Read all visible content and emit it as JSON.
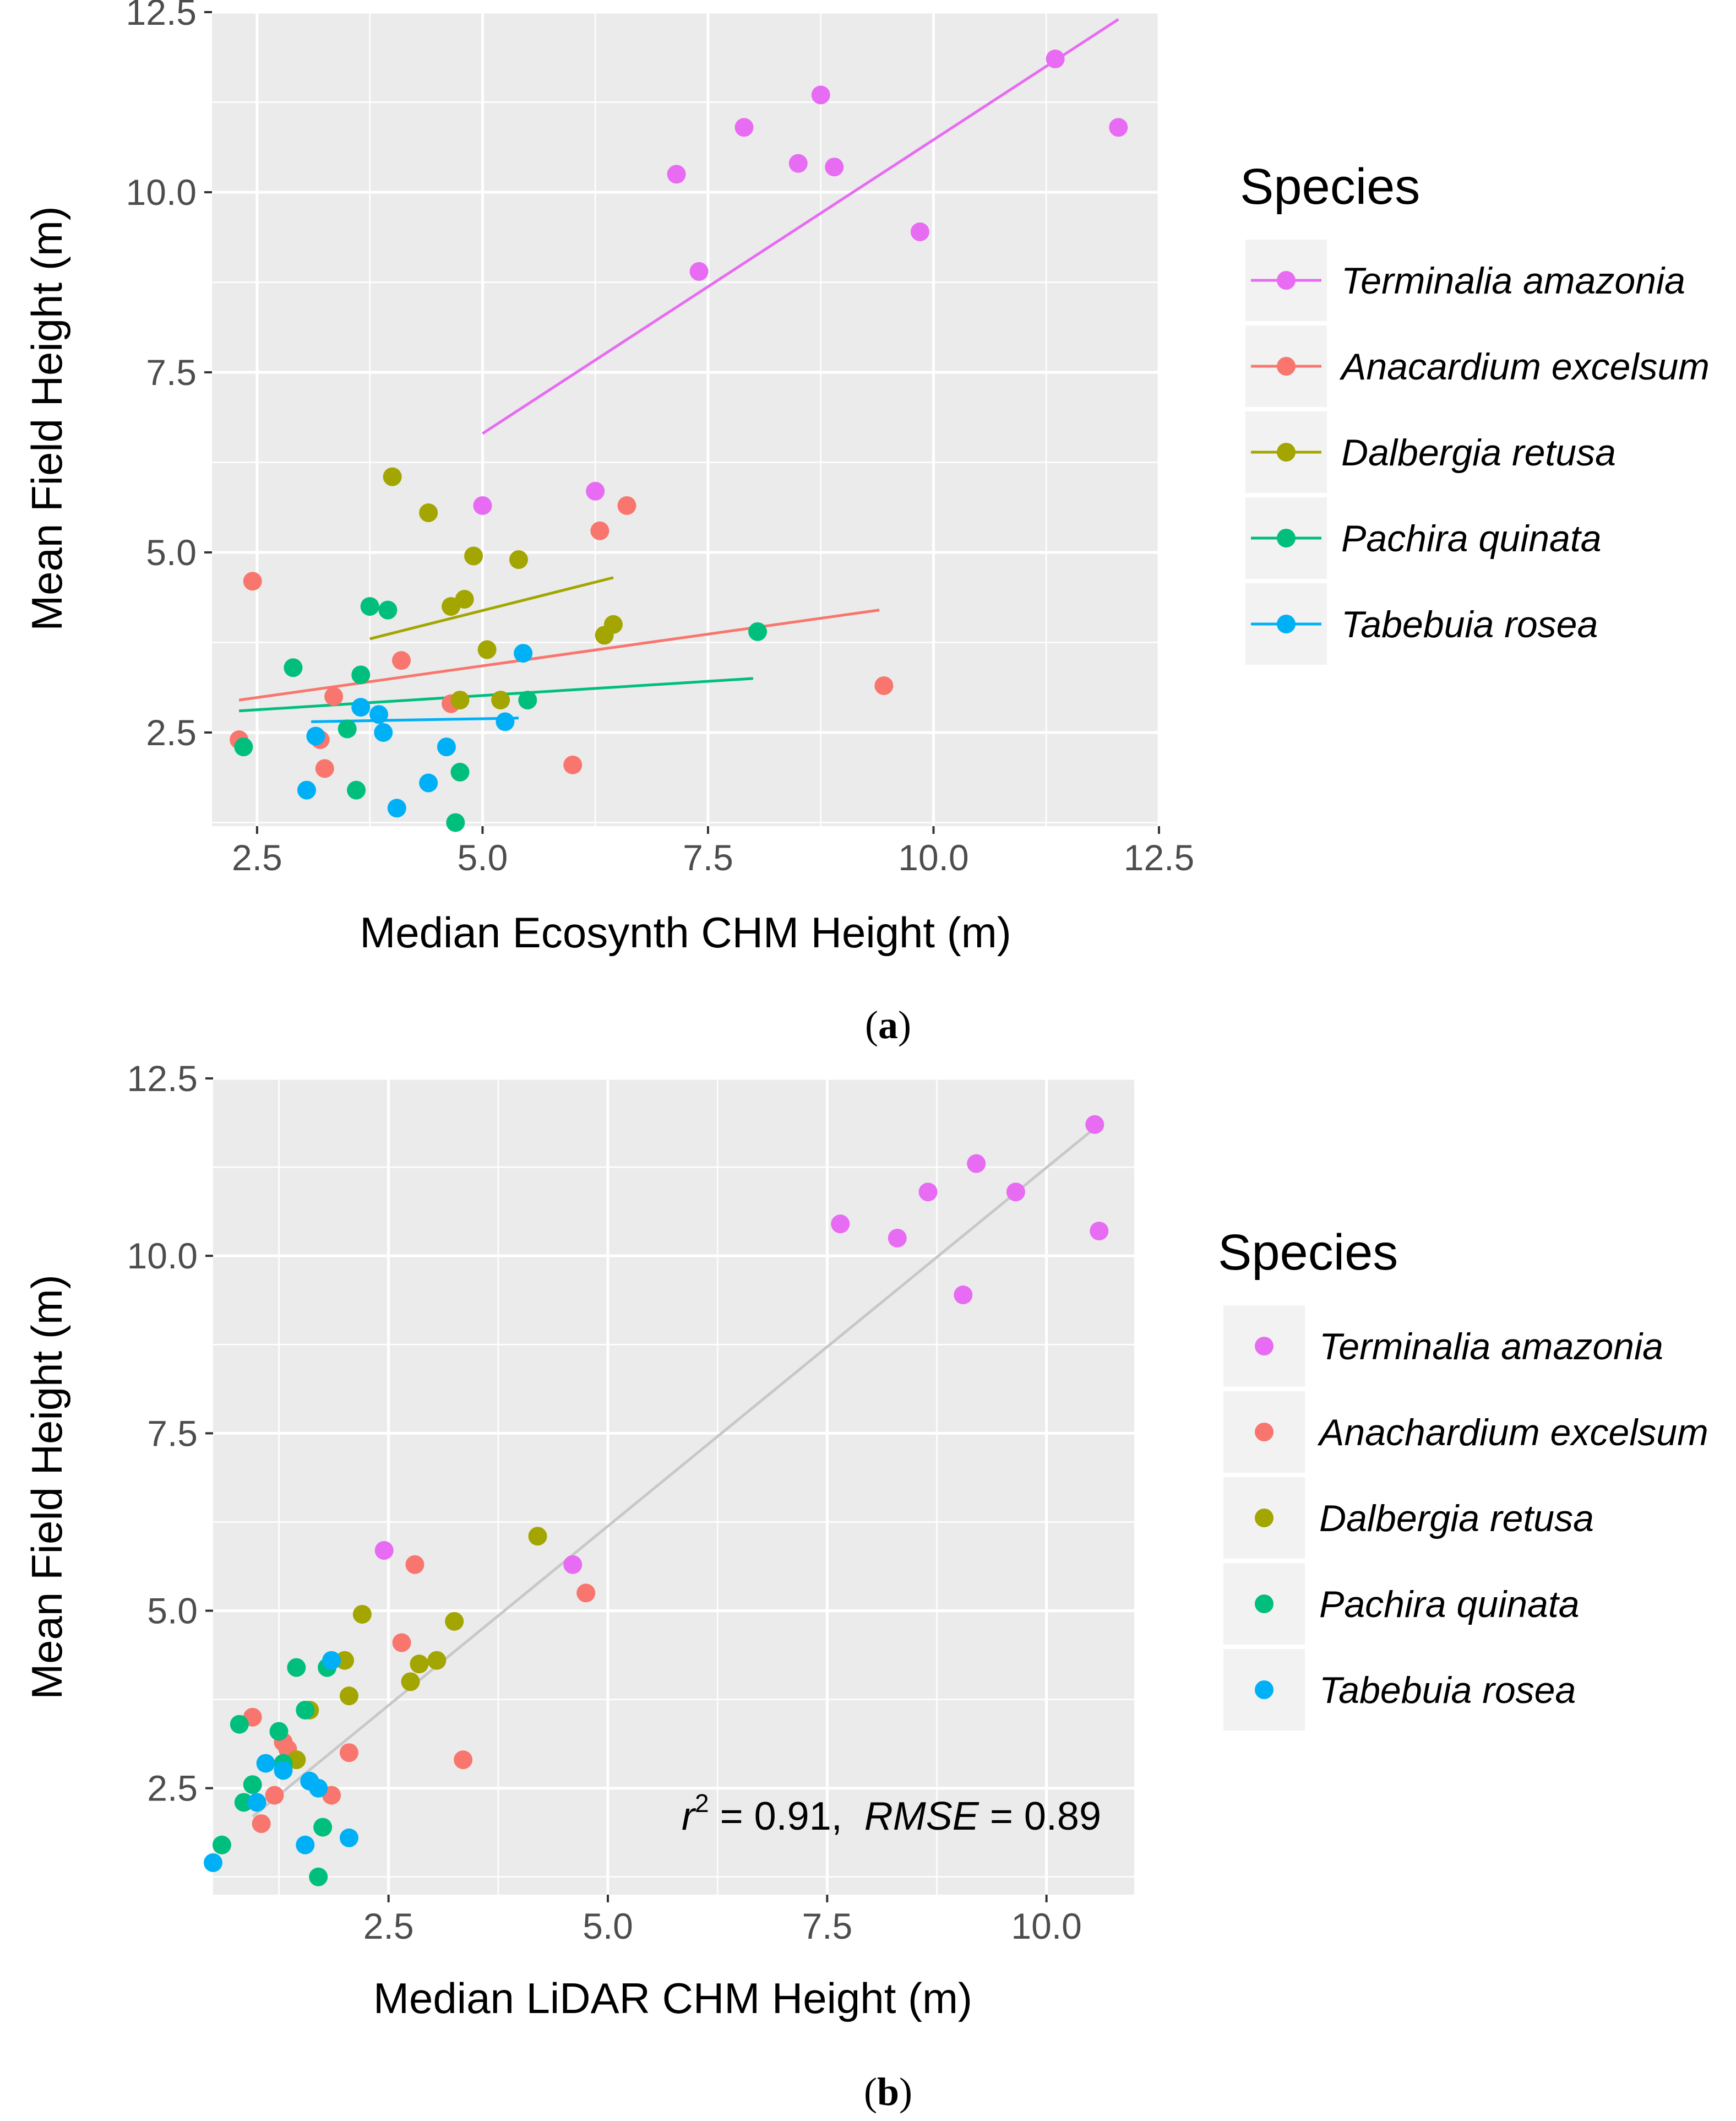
{
  "chart_data": [
    {
      "id": "a",
      "type": "scatter",
      "caption_label": "a",
      "xlabel": "Median Ecosynth CHM Height (m)",
      "ylabel": "Mean Field Height (m)",
      "xlim": [
        2.0,
        12.5
      ],
      "ylim": [
        1.2,
        12.5
      ],
      "xticks": [
        "2.5",
        "5.0",
        "7.5",
        "10.0",
        "12.5"
      ],
      "yticks": [
        "2.5",
        "5.0",
        "7.5",
        "10.0",
        "12.5"
      ],
      "legend_title": "Species",
      "legend_glyph": "line-point",
      "series": [
        {
          "name": "Terminalia amazonia",
          "color": "#e76bf3",
          "x": [
            5.0,
            6.25,
            7.15,
            7.4,
            7.9,
            8.5,
            8.75,
            8.9,
            9.85,
            11.35,
            12.05
          ],
          "y": [
            5.65,
            5.85,
            10.25,
            8.9,
            10.9,
            10.4,
            11.35,
            10.35,
            9.45,
            11.85,
            10.9
          ],
          "fit": [
            [
              5.0,
              6.65
            ],
            [
              12.05,
              12.4
            ]
          ]
        },
        {
          "name": "Anacardium excelsum",
          "color": "#f8766d",
          "x": [
            2.3,
            2.45,
            3.2,
            3.25,
            3.35,
            4.1,
            4.65,
            6.0,
            6.3,
            6.6,
            9.45
          ],
          "y": [
            2.4,
            4.6,
            2.4,
            2.0,
            3.0,
            3.5,
            2.9,
            2.05,
            5.3,
            5.65,
            3.15
          ],
          "fit": [
            [
              2.3,
              2.95
            ],
            [
              9.4,
              4.2
            ]
          ]
        },
        {
          "name": "Dalbergia retusa",
          "color": "#a3a500",
          "x": [
            4.0,
            4.4,
            4.65,
            4.8,
            4.75,
            4.9,
            5.05,
            5.2,
            5.4,
            6.35,
            6.45
          ],
          "y": [
            6.05,
            5.55,
            4.25,
            4.35,
            2.95,
            4.95,
            3.65,
            2.95,
            4.9,
            3.85,
            4.0
          ],
          "fit": [
            [
              3.75,
              3.8
            ],
            [
              6.45,
              4.65
            ]
          ]
        },
        {
          "name": "Pachira quinata",
          "color": "#00bf7d",
          "x": [
            2.35,
            2.9,
            3.5,
            3.6,
            3.65,
            3.75,
            3.95,
            4.7,
            4.75,
            5.5,
            8.05
          ],
          "y": [
            2.3,
            3.4,
            2.55,
            1.7,
            3.3,
            4.25,
            4.2,
            1.25,
            1.95,
            2.95,
            3.9
          ],
          "fit": [
            [
              2.3,
              2.8
            ],
            [
              8.0,
              3.25
            ]
          ]
        },
        {
          "name": "Tabebuia rosea",
          "color": "#00b0f6",
          "x": [
            3.05,
            3.15,
            3.65,
            3.85,
            3.9,
            4.05,
            4.4,
            4.6,
            5.25,
            5.45
          ],
          "y": [
            1.7,
            2.45,
            2.85,
            2.75,
            2.5,
            1.45,
            1.8,
            2.3,
            2.65,
            3.6
          ],
          "fit": [
            [
              3.1,
              2.65
            ],
            [
              5.4,
              2.7
            ]
          ]
        }
      ]
    },
    {
      "id": "b",
      "type": "scatter",
      "caption_label": "b",
      "xlabel": "Median LiDAR CHM Height (m)",
      "ylabel": "Mean Field Height (m)",
      "xlim": [
        0.5,
        11.0
      ],
      "ylim": [
        1.0,
        12.5
      ],
      "xticks": [
        "2.5",
        "5.0",
        "7.5",
        "10.0"
      ],
      "yticks": [
        "2.5",
        "5.0",
        "7.5",
        "10.0",
        "12.5"
      ],
      "legend_title": "Species",
      "legend_glyph": "point",
      "fit_all": [
        [
          0.95,
          2.1
        ],
        [
          10.6,
          11.85
        ]
      ],
      "annotation": {
        "r": "r",
        "sq": "2",
        "eq1": " = 0.91,  ",
        "rmse": "RMSE",
        "eq2": " = 0.89"
      },
      "series": [
        {
          "name": "Terminalia amazonia",
          "color": "#e76bf3",
          "x": [
            2.45,
            4.6,
            7.65,
            8.3,
            8.65,
            9.2,
            9.05,
            9.65,
            10.55,
            10.6
          ],
          "y": [
            5.85,
            5.65,
            10.45,
            10.25,
            10.9,
            11.3,
            9.45,
            10.9,
            11.85,
            10.35
          ],
          "fit": null
        },
        {
          "name": "Anachardium excelsum",
          "color": "#f8766d",
          "x": [
            0.95,
            1.05,
            1.2,
            1.3,
            1.35,
            1.85,
            2.05,
            2.65,
            2.8,
            3.35,
            4.75
          ],
          "y": [
            3.5,
            2.0,
            2.4,
            3.15,
            3.05,
            2.4,
            3.0,
            4.55,
            5.65,
            2.9,
            5.25
          ],
          "fit": null
        },
        {
          "name": "Dalbergia retusa",
          "color": "#a3a500",
          "x": [
            1.45,
            1.6,
            2.0,
            2.05,
            2.2,
            2.75,
            2.85,
            3.05,
            3.25,
            4.2
          ],
          "y": [
            2.9,
            3.6,
            4.3,
            3.8,
            4.95,
            4.0,
            4.25,
            4.3,
            4.85,
            6.05
          ],
          "fit": null
        },
        {
          "name": "Pachira quinata",
          "color": "#00bf7d",
          "x": [
            0.6,
            0.8,
            0.85,
            0.95,
            1.25,
            1.3,
            1.45,
            1.55,
            1.7,
            1.75,
            1.8
          ],
          "y": [
            1.7,
            3.4,
            2.3,
            2.55,
            3.3,
            2.85,
            4.2,
            3.6,
            1.25,
            1.95,
            4.2
          ],
          "fit": null
        },
        {
          "name": "Tabebuia rosea",
          "color": "#00b0f6",
          "x": [
            0.5,
            1.0,
            1.1,
            1.3,
            1.55,
            1.6,
            1.7,
            1.85,
            2.05
          ],
          "y": [
            1.45,
            2.3,
            2.85,
            2.75,
            1.7,
            2.6,
            2.5,
            4.3,
            1.8
          ],
          "fit": null
        }
      ]
    }
  ]
}
